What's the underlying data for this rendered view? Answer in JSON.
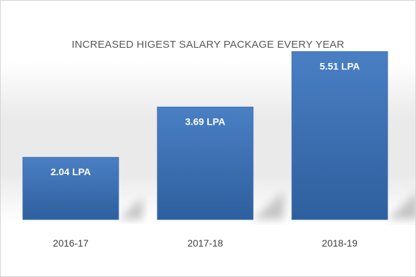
{
  "chart_data": {
    "type": "bar",
    "title": "INCREASED HIGEST SALARY PACKAGE EVERY YEAR",
    "categories": [
      "2016-17",
      "2017-18",
      "2018-19"
    ],
    "values": [
      2.04,
      3.69,
      5.51
    ],
    "data_labels": [
      "2.04 LPA",
      "3.69 LPA",
      "5.51 LPA"
    ],
    "ylim": [
      0,
      6
    ],
    "grid": false,
    "legend": "none",
    "colors": {
      "bar_top": "#4a7fc4",
      "bar_bottom": "#2e5f9e",
      "bar_border": "#3a6db0",
      "band": "#eaeaea"
    }
  }
}
